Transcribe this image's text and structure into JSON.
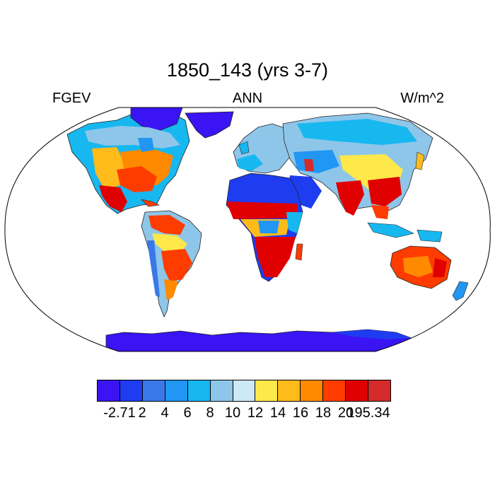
{
  "title": "1850_143 (yrs 3-7)",
  "left_label": "FGEV",
  "center_label": "ANN",
  "right_label": "W/m^2",
  "colorbar": {
    "colors": [
      "#3a14f2",
      "#1e3cf0",
      "#3a78e8",
      "#2196f3",
      "#17b7f0",
      "#8ec6ea",
      "#cde8f6",
      "#ffe84a",
      "#ffbb1a",
      "#ff8a00",
      "#ff3c00",
      "#e00000",
      "#d42a2a"
    ],
    "labels": [
      "-2.71",
      "2",
      "4",
      "6",
      "8",
      "10",
      "12",
      "14",
      "16",
      "18",
      "20",
      "195.34"
    ]
  },
  "map": {
    "projection": "Robinson",
    "variable": "FGEV",
    "units": "W/m^2",
    "high_regions": [
      "eastern United States",
      "Mexico and Central America",
      "northern South America coast",
      "southern Brazil",
      "Sahel band",
      "central and southern Africa",
      "India",
      "southern China",
      "Southeast Asia",
      "northern and eastern Australia"
    ],
    "low_regions": [
      "Greenland",
      "Antarctica",
      "Sahara",
      "Arabian Peninsula",
      "Canadian Arctic",
      "Siberia"
    ]
  }
}
